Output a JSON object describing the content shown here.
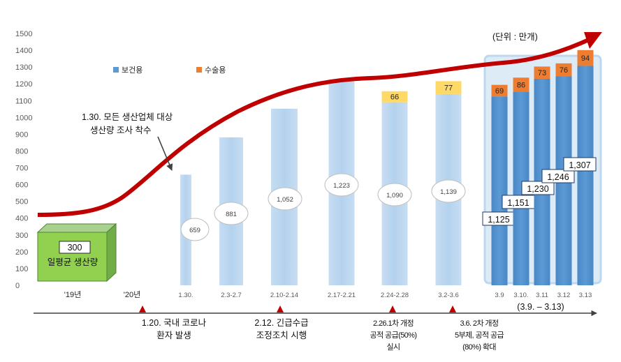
{
  "chart_data": {
    "type": "bar",
    "unit_label": "(단위 : 만개)",
    "ylim": [
      0,
      1500
    ],
    "yticks": [
      0,
      100,
      200,
      300,
      400,
      500,
      600,
      700,
      800,
      900,
      1000,
      1100,
      1200,
      1300,
      1400,
      1500
    ],
    "legend": [
      "보건용",
      "수술용"
    ],
    "categories": [
      "'19년",
      "'20년",
      "1.30.",
      "2.3-2.7",
      "2.10-2.14",
      "2.17-2.21",
      "2.24-2.28",
      "3.2-3.6",
      "3.9",
      "3.10.",
      "3.11",
      "3.12",
      "3.13"
    ],
    "series": [
      {
        "name": "보건용",
        "values": [
          300,
          null,
          659,
          881,
          1052,
          1223,
          1090,
          1139,
          1125,
          1151,
          1230,
          1246,
          1307
        ],
        "labels": [
          "300",
          "",
          "659",
          "881",
          "1,052",
          "1,223",
          "1,090",
          "1,139",
          "1,125",
          "1,151",
          "1,230",
          "1,246",
          "1,307"
        ]
      },
      {
        "name": "수술용",
        "values": [
          null,
          null,
          null,
          null,
          null,
          null,
          66,
          77,
          69,
          86,
          73,
          76,
          94
        ],
        "labels": [
          "",
          "",
          "",
          "",
          "",
          "",
          "66",
          "77",
          "69",
          "86",
          "73",
          "76",
          "94"
        ]
      }
    ],
    "baseline_label": "일평균 생산량",
    "bracket_label": "(3.9. – 3.13)",
    "annotations": [
      {
        "line1": "1.30. 모든 생산업체 대상",
        "line2": "생산량 조사 착수"
      }
    ],
    "timeline": [
      {
        "lines": [
          "1.20. 국내 코로나",
          "환자 발생"
        ]
      },
      {
        "lines": [
          "2.12. 긴급수급",
          "조정조치 시행"
        ]
      },
      {
        "lines": [
          "2.26.1차 개정",
          "공적 공급(50%)",
          "실시"
        ]
      },
      {
        "lines": [
          "3.6. 2차 개정",
          "5부제, 공적 공급",
          "(80%) 확대"
        ]
      }
    ],
    "colors": {
      "health_light": "#bdd7ee",
      "health_dark": "#5b9bd5",
      "surgical_yellow": "#ffd966",
      "surgical_orange": "#ed7d31",
      "baseline_green": "#92d050",
      "trend_red": "#c00000",
      "highlight_bg": "#ddebf7"
    }
  }
}
